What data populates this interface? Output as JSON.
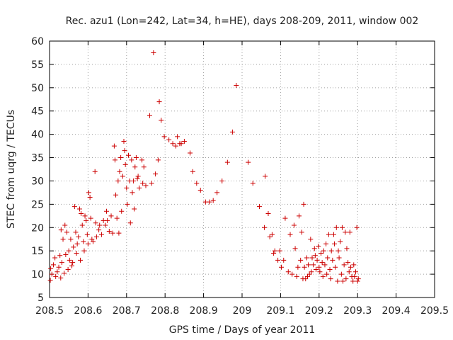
{
  "chart_data": {
    "type": "scatter",
    "title": "Rec. azu1 (Lon=242, Lat=34, h=HE), days 208-209, 2011, window 002",
    "xlabel": "GPS time / Days of year 2011",
    "ylabel": "STEC from uqrg / TECUs",
    "xlim": [
      208.5,
      209.5
    ],
    "ylim": [
      5,
      60
    ],
    "x_ticks": [
      208.5,
      208.6,
      208.7,
      208.8,
      208.9,
      209.0,
      209.1,
      209.2,
      209.3,
      209.4,
      209.5
    ],
    "x_tick_labels": [
      "208.5",
      "208.6",
      "208.7",
      "208.8",
      "208.9",
      "209",
      "209.1",
      "209.2",
      "209.3",
      "209.4",
      "209.5"
    ],
    "y_ticks": [
      5,
      10,
      15,
      20,
      25,
      30,
      35,
      40,
      45,
      50,
      55,
      60
    ],
    "y_tick_labels": [
      "5",
      "10",
      "15",
      "20",
      "25",
      "30",
      "35",
      "40",
      "45",
      "50",
      "55",
      "60"
    ],
    "grid": true,
    "marker": "+",
    "marker_color": "#cc0000",
    "points": [
      [
        208.502,
        8.7
      ],
      [
        208.503,
        11.2
      ],
      [
        208.506,
        10.0
      ],
      [
        208.51,
        12.0
      ],
      [
        208.514,
        13.5
      ],
      [
        208.516,
        9.5
      ],
      [
        208.52,
        10.5
      ],
      [
        208.524,
        11.5
      ],
      [
        208.527,
        14.0
      ],
      [
        208.529,
        9.2
      ],
      [
        208.53,
        19.5
      ],
      [
        208.532,
        12.5
      ],
      [
        208.535,
        17.5
      ],
      [
        208.538,
        10.2
      ],
      [
        208.54,
        20.5
      ],
      [
        208.542,
        14.2
      ],
      [
        208.545,
        19.0
      ],
      [
        208.548,
        11.0
      ],
      [
        208.55,
        15.0
      ],
      [
        208.552,
        13.0
      ],
      [
        208.555,
        17.5
      ],
      [
        208.558,
        11.8
      ],
      [
        208.56,
        12.5
      ],
      [
        208.562,
        15.8
      ],
      [
        208.565,
        24.5
      ],
      [
        208.568,
        19.0
      ],
      [
        208.57,
        14.5
      ],
      [
        208.572,
        16.5
      ],
      [
        208.575,
        18.0
      ],
      [
        208.578,
        24.0
      ],
      [
        208.58,
        13.0
      ],
      [
        208.582,
        23.0
      ],
      [
        208.585,
        20.5
      ],
      [
        208.588,
        17.0
      ],
      [
        208.59,
        15.0
      ],
      [
        208.592,
        22.5
      ],
      [
        208.595,
        21.5
      ],
      [
        208.598,
        18.5
      ],
      [
        208.6,
        16.5
      ],
      [
        208.602,
        27.5
      ],
      [
        208.605,
        26.5
      ],
      [
        208.607,
        22.0
      ],
      [
        208.61,
        17.5
      ],
      [
        208.613,
        17.0
      ],
      [
        208.618,
        32.0
      ],
      [
        208.62,
        21.0
      ],
      [
        208.622,
        18.0
      ],
      [
        208.628,
        19.5
      ],
      [
        208.63,
        20.5
      ],
      [
        208.635,
        18.5
      ],
      [
        208.64,
        21.5
      ],
      [
        208.645,
        20.5
      ],
      [
        208.648,
        23.5
      ],
      [
        208.65,
        21.5
      ],
      [
        208.655,
        19.2
      ],
      [
        208.66,
        22.5
      ],
      [
        208.664,
        18.8
      ],
      [
        208.668,
        37.5
      ],
      [
        208.67,
        34.5
      ],
      [
        208.672,
        27.0
      ],
      [
        208.675,
        22.0
      ],
      [
        208.678,
        30.0
      ],
      [
        208.68,
        18.8
      ],
      [
        208.682,
        32.0
      ],
      [
        208.685,
        35.0
      ],
      [
        208.687,
        23.5
      ],
      [
        208.69,
        31.0
      ],
      [
        208.693,
        38.5
      ],
      [
        208.695,
        36.5
      ],
      [
        208.697,
        33.5
      ],
      [
        208.7,
        28.5
      ],
      [
        208.702,
        25.0
      ],
      [
        208.705,
        35.5
      ],
      [
        208.708,
        30.0
      ],
      [
        208.71,
        21.0
      ],
      [
        208.713,
        34.5
      ],
      [
        208.715,
        27.5
      ],
      [
        208.718,
        30.0
      ],
      [
        208.72,
        24.0
      ],
      [
        208.722,
        33.0
      ],
      [
        208.725,
        35.0
      ],
      [
        208.728,
        30.5
      ],
      [
        208.73,
        31.0
      ],
      [
        208.733,
        28.5
      ],
      [
        208.74,
        34.5
      ],
      [
        208.742,
        29.5
      ],
      [
        208.745,
        33.0
      ],
      [
        208.75,
        29.0
      ],
      [
        208.76,
        44.0
      ],
      [
        208.765,
        29.5
      ],
      [
        208.77,
        57.5
      ],
      [
        208.775,
        31.5
      ],
      [
        208.782,
        34.5
      ],
      [
        208.785,
        47.0
      ],
      [
        208.79,
        43.0
      ],
      [
        208.798,
        39.5
      ],
      [
        208.81,
        38.8
      ],
      [
        208.82,
        38.0
      ],
      [
        208.828,
        37.5
      ],
      [
        208.832,
        39.5
      ],
      [
        208.838,
        38.0
      ],
      [
        208.842,
        38.0
      ],
      [
        208.85,
        38.5
      ],
      [
        208.865,
        36.0
      ],
      [
        208.872,
        32.0
      ],
      [
        208.882,
        29.5
      ],
      [
        208.892,
        28.0
      ],
      [
        208.905,
        25.5
      ],
      [
        208.915,
        25.5
      ],
      [
        208.925,
        25.8
      ],
      [
        208.935,
        27.5
      ],
      [
        208.948,
        30.0
      ],
      [
        208.962,
        34.0
      ],
      [
        208.975,
        40.5
      ],
      [
        208.985,
        50.5
      ],
      [
        209.016,
        34.0
      ],
      [
        209.028,
        29.5
      ],
      [
        209.045,
        24.5
      ],
      [
        209.058,
        20.0
      ],
      [
        209.06,
        31.0
      ],
      [
        209.068,
        23.0
      ],
      [
        209.072,
        18.0
      ],
      [
        209.078,
        18.5
      ],
      [
        209.082,
        14.5
      ],
      [
        209.085,
        15.0
      ],
      [
        209.093,
        13.0
      ],
      [
        209.098,
        15.0
      ],
      [
        209.102,
        11.5
      ],
      [
        209.108,
        13.0
      ],
      [
        209.112,
        22.0
      ],
      [
        209.12,
        10.5
      ],
      [
        209.125,
        18.5
      ],
      [
        209.13,
        10.0
      ],
      [
        209.135,
        20.5
      ],
      [
        209.138,
        15.5
      ],
      [
        209.142,
        9.5
      ],
      [
        209.145,
        11.5
      ],
      [
        209.148,
        22.5
      ],
      [
        209.152,
        13.0
      ],
      [
        209.155,
        19.0
      ],
      [
        209.158,
        9.0
      ],
      [
        209.16,
        25.0
      ],
      [
        209.162,
        11.5
      ],
      [
        209.165,
        9.0
      ],
      [
        209.168,
        13.5
      ],
      [
        209.17,
        9.5
      ],
      [
        209.172,
        12.0
      ],
      [
        209.175,
        10.0
      ],
      [
        209.178,
        17.5
      ],
      [
        209.18,
        10.5
      ],
      [
        209.182,
        13.5
      ],
      [
        209.185,
        12.0
      ],
      [
        209.188,
        15.5
      ],
      [
        209.19,
        14.0
      ],
      [
        209.192,
        11.0
      ],
      [
        209.195,
        13.0
      ],
      [
        209.198,
        16.0
      ],
      [
        209.2,
        11.5
      ],
      [
        209.202,
        10.5
      ],
      [
        209.205,
        14.5
      ],
      [
        209.208,
        12.5
      ],
      [
        209.21,
        9.5
      ],
      [
        209.212,
        15.0
      ],
      [
        209.215,
        12.0
      ],
      [
        209.218,
        16.5
      ],
      [
        209.22,
        10.0
      ],
      [
        209.222,
        13.5
      ],
      [
        209.225,
        18.5
      ],
      [
        209.228,
        11.0
      ],
      [
        209.23,
        9.0
      ],
      [
        209.232,
        15.0
      ],
      [
        209.235,
        13.0
      ],
      [
        209.238,
        18.5
      ],
      [
        209.24,
        16.5
      ],
      [
        209.242,
        11.5
      ],
      [
        209.245,
        20.0
      ],
      [
        209.248,
        8.5
      ],
      [
        209.25,
        15.0
      ],
      [
        209.252,
        13.5
      ],
      [
        209.255,
        17.0
      ],
      [
        209.258,
        10.0
      ],
      [
        209.26,
        20.0
      ],
      [
        209.262,
        8.5
      ],
      [
        209.265,
        12.0
      ],
      [
        209.268,
        19.0
      ],
      [
        209.27,
        9.0
      ],
      [
        209.272,
        15.5
      ],
      [
        209.275,
        12.5
      ],
      [
        209.278,
        10.5
      ],
      [
        209.28,
        19.0
      ],
      [
        209.282,
        11.5
      ],
      [
        209.285,
        9.5
      ],
      [
        209.288,
        8.5
      ],
      [
        209.29,
        12.0
      ],
      [
        209.292,
        9.5
      ],
      [
        209.295,
        10.5
      ],
      [
        209.298,
        20.0
      ],
      [
        209.3,
        8.5
      ],
      [
        209.302,
        9.0
      ]
    ]
  }
}
